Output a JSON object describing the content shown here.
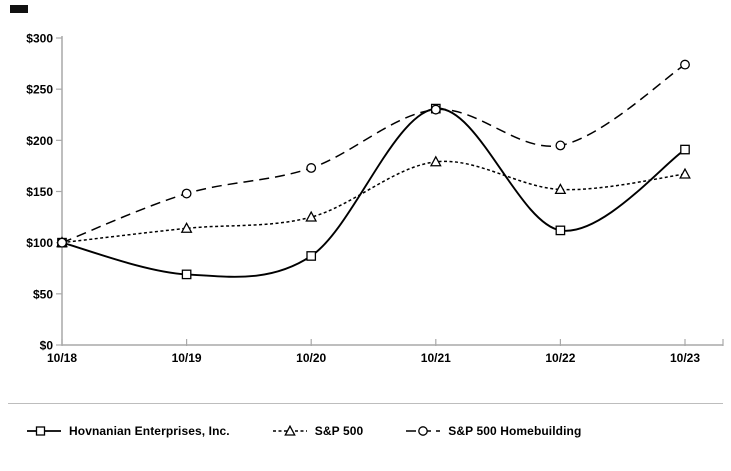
{
  "chart_data": {
    "type": "line",
    "title": "",
    "xlabel": "",
    "ylabel": "",
    "categories": [
      "10/18",
      "10/19",
      "10/20",
      "10/21",
      "10/22",
      "10/23"
    ],
    "series": [
      {
        "name": "Hovnanian Enterprises, Inc.",
        "marker": "square",
        "line_style": "solid",
        "values": [
          100,
          69,
          87,
          231,
          112,
          191
        ]
      },
      {
        "name": "S&P 500",
        "marker": "triangle",
        "line_style": "short-dash",
        "values": [
          100,
          114,
          125,
          179,
          152,
          167
        ]
      },
      {
        "name": "S&P 500 Homebuilding",
        "marker": "circle",
        "line_style": "long-dash",
        "values": [
          100,
          148,
          173,
          230,
          195,
          274
        ]
      }
    ],
    "y_ticks": [
      {
        "label": "$300",
        "value": 300
      },
      {
        "label": "$250",
        "value": 250
      },
      {
        "label": "$200",
        "value": 200
      },
      {
        "label": "$150",
        "value": 150
      },
      {
        "label": "$100",
        "value": 100
      },
      {
        "label": "$50",
        "value": 50
      },
      {
        "label": "$0",
        "value": 0
      }
    ],
    "ylim": [
      0,
      300
    ],
    "grid": false,
    "legend_position": "bottom",
    "colors": {
      "series_line": "#000000",
      "axis": "#a9a9a9",
      "text": "#000000",
      "marker_fill": "#ffffff",
      "background": "#ffffff"
    }
  }
}
